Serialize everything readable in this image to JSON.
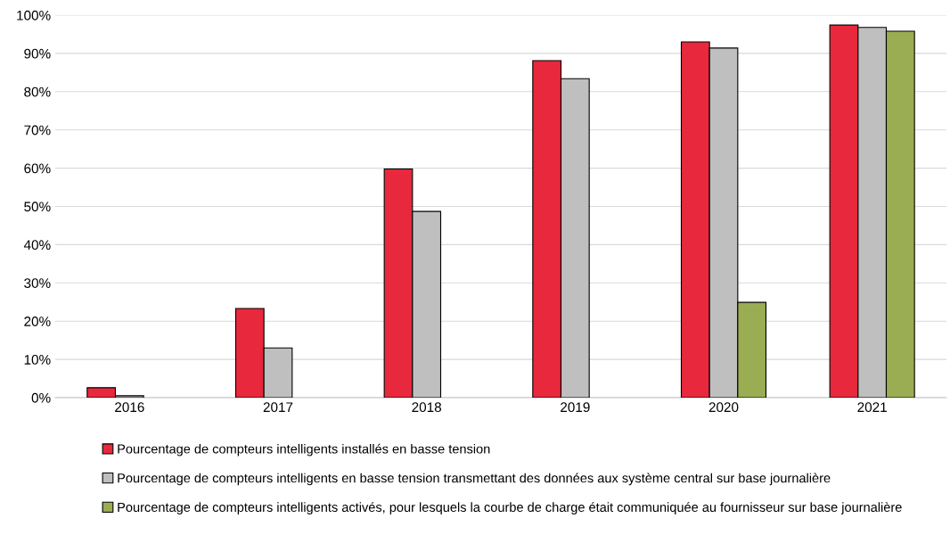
{
  "chart_data": {
    "type": "bar",
    "categories": [
      "2016",
      "2017",
      "2018",
      "2019",
      "2020",
      "2021"
    ],
    "series": [
      {
        "name": "Pourcentage de compteurs intelligents installés en basse tension",
        "color": "#e8283c",
        "values": [
          2.6,
          23.3,
          59.8,
          88.1,
          93.0,
          97.4
        ]
      },
      {
        "name": "Pourcentage de compteurs intelligents en basse tension transmettant des données aux système central sur base journalière",
        "color": "#bfbfbf",
        "values": [
          0.5,
          13.0,
          48.7,
          83.4,
          91.4,
          96.8
        ]
      },
      {
        "name": "Pourcentage de compteurs intelligents activés, pour lesquels la courbe de charge était communiquée au fournisseur sur base journalière",
        "color": "#9bad52",
        "values": [
          null,
          null,
          null,
          null,
          24.9,
          95.8
        ]
      }
    ],
    "ylim": [
      0,
      100
    ],
    "yticks": [
      {
        "value": 0,
        "label": "0%"
      },
      {
        "value": 10,
        "label": "10%"
      },
      {
        "value": 20,
        "label": "20%"
      },
      {
        "value": 30,
        "label": "30%"
      },
      {
        "value": 40,
        "label": "40%"
      },
      {
        "value": 50,
        "label": "50%"
      },
      {
        "value": 60,
        "label": "60%"
      },
      {
        "value": 70,
        "label": "70%"
      },
      {
        "value": 80,
        "label": "80%"
      },
      {
        "value": 90,
        "label": "90%"
      },
      {
        "value": 100,
        "label": "100%"
      }
    ],
    "grid": "y",
    "legend": "bottom"
  }
}
